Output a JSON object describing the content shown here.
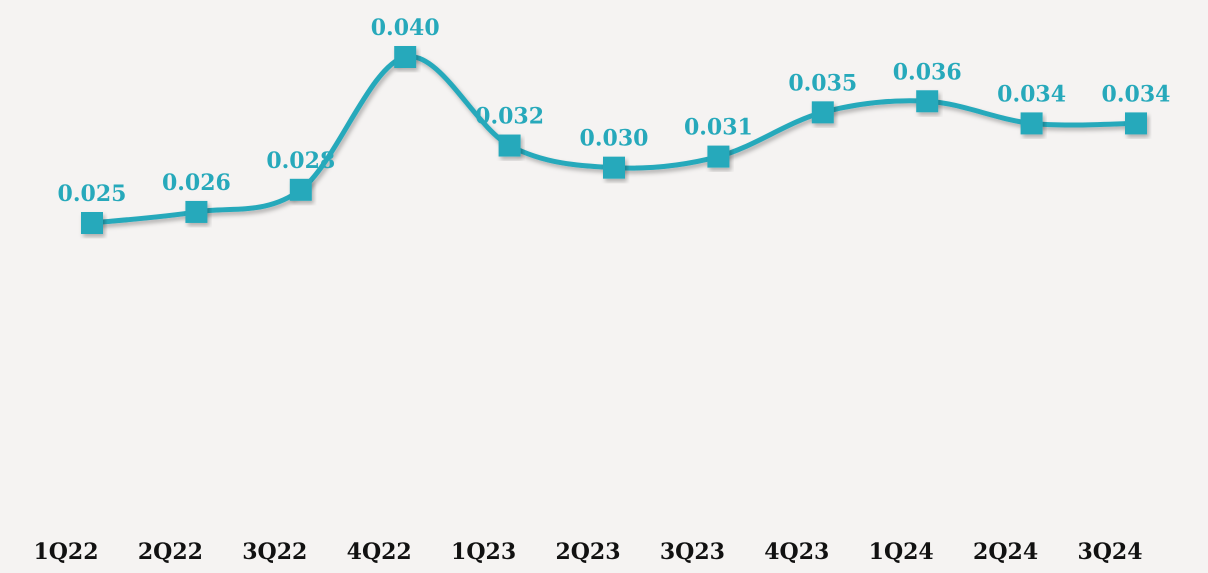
{
  "chart_data": {
    "type": "line",
    "categories": [
      "1Q22",
      "2Q22",
      "3Q22",
      "4Q22",
      "1Q23",
      "2Q23",
      "3Q23",
      "4Q23",
      "1Q24",
      "2Q24",
      "3Q24"
    ],
    "series": [
      {
        "values": [
          0.025,
          0.026,
          0.028,
          0.04,
          0.032,
          0.03,
          0.031,
          0.035,
          0.036,
          0.034,
          0.034
        ],
        "labels": [
          "0.025",
          "0.026",
          "0.028",
          "0.040",
          "0.032",
          "0.030",
          "0.031",
          "0.035",
          "0.036",
          "0.034",
          "0.034"
        ],
        "color": "#27a9bb",
        "marker": "square",
        "smooth": true
      }
    ],
    "ylim": [
      0.0,
      0.042
    ],
    "grid": false,
    "legend": "none",
    "data_labels": "above"
  },
  "colors": {
    "background": "#f5f3f2",
    "series": "#27a9bb",
    "label": "#27a9bb",
    "tick": "#111111"
  }
}
